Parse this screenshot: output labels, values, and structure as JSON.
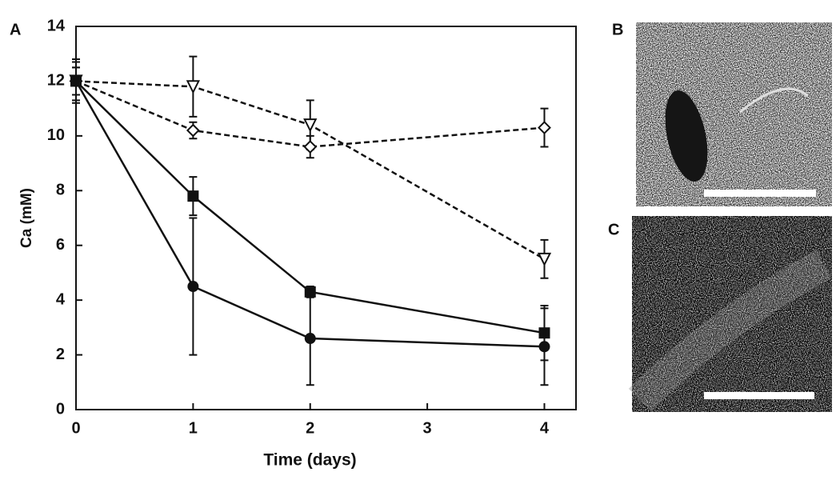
{
  "chart_data": {
    "type": "line",
    "panel_label": "A",
    "xlabel": "Time (days)",
    "ylabel": "Ca (mM)",
    "x": [
      0,
      1,
      2,
      4
    ],
    "series": [
      {
        "color": "#111111",
        "marker": "triangle-open",
        "dash": true,
        "values": [
          12,
          11.8,
          10.4,
          5.5
        ],
        "errors": [
          0.8,
          1.1,
          0.9,
          0.7
        ]
      },
      {
        "color": "#111111",
        "marker": "diamond-open",
        "dash": true,
        "values": [
          12,
          10.2,
          9.6,
          10.3
        ],
        "errors": [
          0.7,
          0.3,
          0.4,
          0.7
        ]
      },
      {
        "color": "#111111",
        "marker": "square",
        "dash": false,
        "values": [
          12,
          7.8,
          4.3,
          2.8
        ],
        "errors": [
          0.5,
          0.7,
          0.2,
          1.0
        ]
      },
      {
        "color": "#111111",
        "marker": "circle",
        "dash": false,
        "values": [
          12,
          4.5,
          2.6,
          2.3
        ],
        "errors": [
          0.5,
          2.5,
          1.7,
          1.4
        ]
      }
    ],
    "xlim": [
      0,
      4.27
    ],
    "ylim": [
      0,
      14
    ],
    "xticks": [
      0,
      1,
      2,
      3,
      4
    ],
    "yticks": [
      0,
      2,
      4,
      6,
      8,
      10,
      12,
      14
    ]
  },
  "panels": [
    {
      "label": "B"
    },
    {
      "label": "C"
    }
  ]
}
